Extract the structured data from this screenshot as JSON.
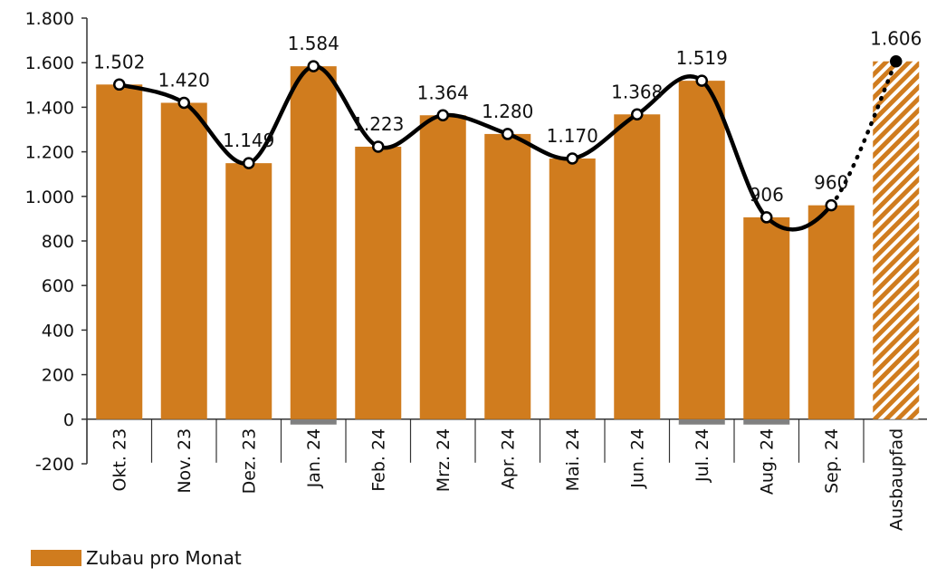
{
  "chart_data": {
    "type": "bar",
    "categories": [
      "Okt. 23",
      "Nov. 23",
      "Dez. 23",
      "Jan. 24",
      "Feb. 24",
      "Mrz. 24",
      "Apr. 24",
      "Mai. 24",
      "Jun. 24",
      "Jul. 24",
      "Aug. 24",
      "Sep. 24",
      "Ausbaupfad"
    ],
    "values": [
      1502,
      1420,
      1149,
      1584,
      1223,
      1364,
      1280,
      1170,
      1368,
      1519,
      906,
      960,
      1606
    ],
    "value_labels": [
      "1.502",
      "1.420",
      "1.149",
      "1.584",
      "1.223",
      "1.364",
      "1.280",
      "1.170",
      "1.368",
      "1.519",
      "906",
      "960",
      "1.606"
    ],
    "ylim": [
      -200,
      1800
    ],
    "yticks": [
      -200,
      0,
      200,
      400,
      600,
      800,
      1000,
      1200,
      1400,
      1600,
      1800
    ],
    "ytick_labels": [
      "-200",
      "0",
      "200",
      "400",
      "600",
      "800",
      "1.000",
      "1.200",
      "1.400",
      "1.600",
      "1.800"
    ],
    "series": [
      {
        "name": "Zubau pro Monat",
        "values": [
          1502,
          1420,
          1149,
          1584,
          1223,
          1364,
          1280,
          1170,
          1368,
          1519,
          906,
          960,
          1606
        ]
      }
    ],
    "negative_stubs": {
      "Jan. 24": -20,
      "Jul. 24": -20,
      "Aug. 24": -20
    },
    "hatched_category": "Ausbaupfad",
    "trend_line": {
      "style": "smooth",
      "last_segment": "dotted"
    },
    "legend": {
      "position": "bottom-left",
      "label": "Zubau pro Monat"
    },
    "grid": false,
    "colors": {
      "bar": "#D07C1E",
      "line": "#000000",
      "marker_fill": "#ffffff",
      "axis": "#333333",
      "stub": "#808080"
    }
  }
}
